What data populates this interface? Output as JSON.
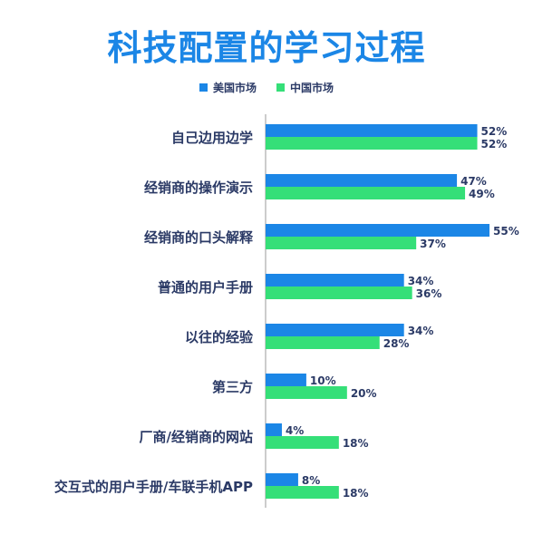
{
  "chart_data": {
    "type": "bar",
    "orientation": "horizontal",
    "title": "科技配置的学习过程",
    "legend_position": "top-center",
    "grid": false,
    "xlim": [
      0,
      55
    ],
    "unit": "%",
    "categories": [
      "自己边用边学",
      "经销商的操作演示",
      "经销商的口头解释",
      "普通的用户手册",
      "以往的经验",
      "第三方",
      "厂商/经销商的网站",
      "交互式的用户手册/车联手机APP"
    ],
    "series": [
      {
        "name": "美国市场",
        "color": "#1b86e6",
        "values": [
          52,
          47,
          55,
          34,
          34,
          10,
          4,
          8
        ],
        "labels": [
          "52%",
          "47%",
          "55%",
          "34%",
          "34%",
          "10%",
          "4%",
          "8%"
        ]
      },
      {
        "name": "中国市场",
        "color": "#35df78",
        "values": [
          52,
          49,
          37,
          36,
          28,
          20,
          18,
          18
        ],
        "labels": [
          "52%",
          "49%",
          "37%",
          "36%",
          "28%",
          "20%",
          "18%",
          "18%"
        ]
      }
    ]
  },
  "colors": {
    "title": "#1b86e6",
    "category_text": "#2b3a66",
    "value_text": "#2b3a66",
    "axis": "#999999"
  }
}
